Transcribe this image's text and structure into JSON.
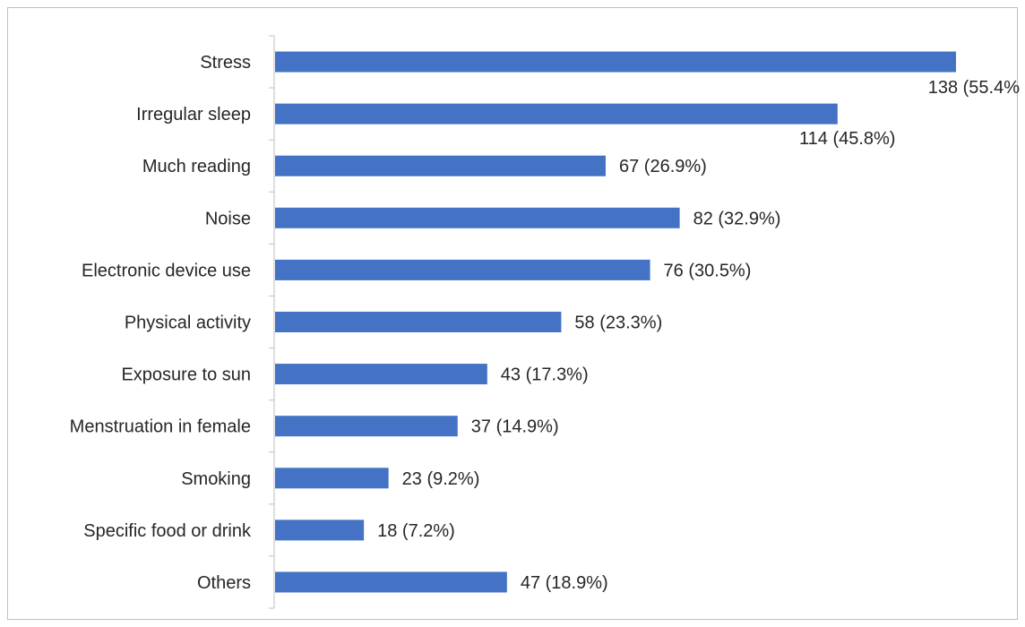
{
  "chart_data": {
    "type": "bar",
    "orientation": "horizontal",
    "title": "",
    "xlabel": "",
    "ylabel": "",
    "categories": [
      "Stress",
      "Irregular sleep",
      "Much reading",
      "Noise",
      "Electronic device use",
      "Physical activity",
      "Exposure to sun",
      "Menstruation in female",
      "Smoking",
      "Specific food or drink",
      "Others"
    ],
    "values": [
      138,
      114,
      67,
      82,
      76,
      58,
      43,
      37,
      23,
      18,
      47
    ],
    "data_labels": [
      "138 (55.4%",
      "114 (45.8%)",
      "67 (26.9%)",
      "82 (32.9%)",
      "76 (30.5%)",
      "58 (23.3%)",
      "43 (17.3%)",
      "37 (14.9%)",
      "23 (9.2%)",
      "18 (7.2%)",
      "47 (18.9%)"
    ],
    "xlim": [
      0,
      138
    ],
    "grid": false,
    "legend": "none",
    "bar_color": "#4472c4"
  }
}
